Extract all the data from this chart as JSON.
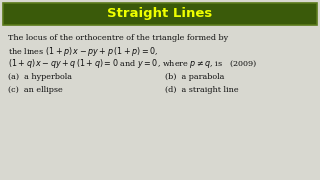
{
  "title": "Straight Lines",
  "title_bg": "#3a5a0a",
  "title_color": "#eeff00",
  "bg_color": "#d8d8d0",
  "line1": "The locus of the orthocentre of the triangle formed by",
  "line2": "the lines $(1 + p)\\,x - py + p\\,(1 + p) = 0$,",
  "line3": "$(1 + q)\\,x - qy + q\\,(1 + q) = 0$ and $y = 0$, where $p \\neq q$, is   (2009)",
  "opt_a": "(a)  a hyperbola",
  "opt_b": "(b)  a parabola",
  "opt_c": "(c)  an ellipse",
  "opt_d": "(d)  a straight line",
  "text_color": "#111111",
  "border_color": "#5a7a1a",
  "title_fontsize": 9.5,
  "body_fontsize": 5.8
}
